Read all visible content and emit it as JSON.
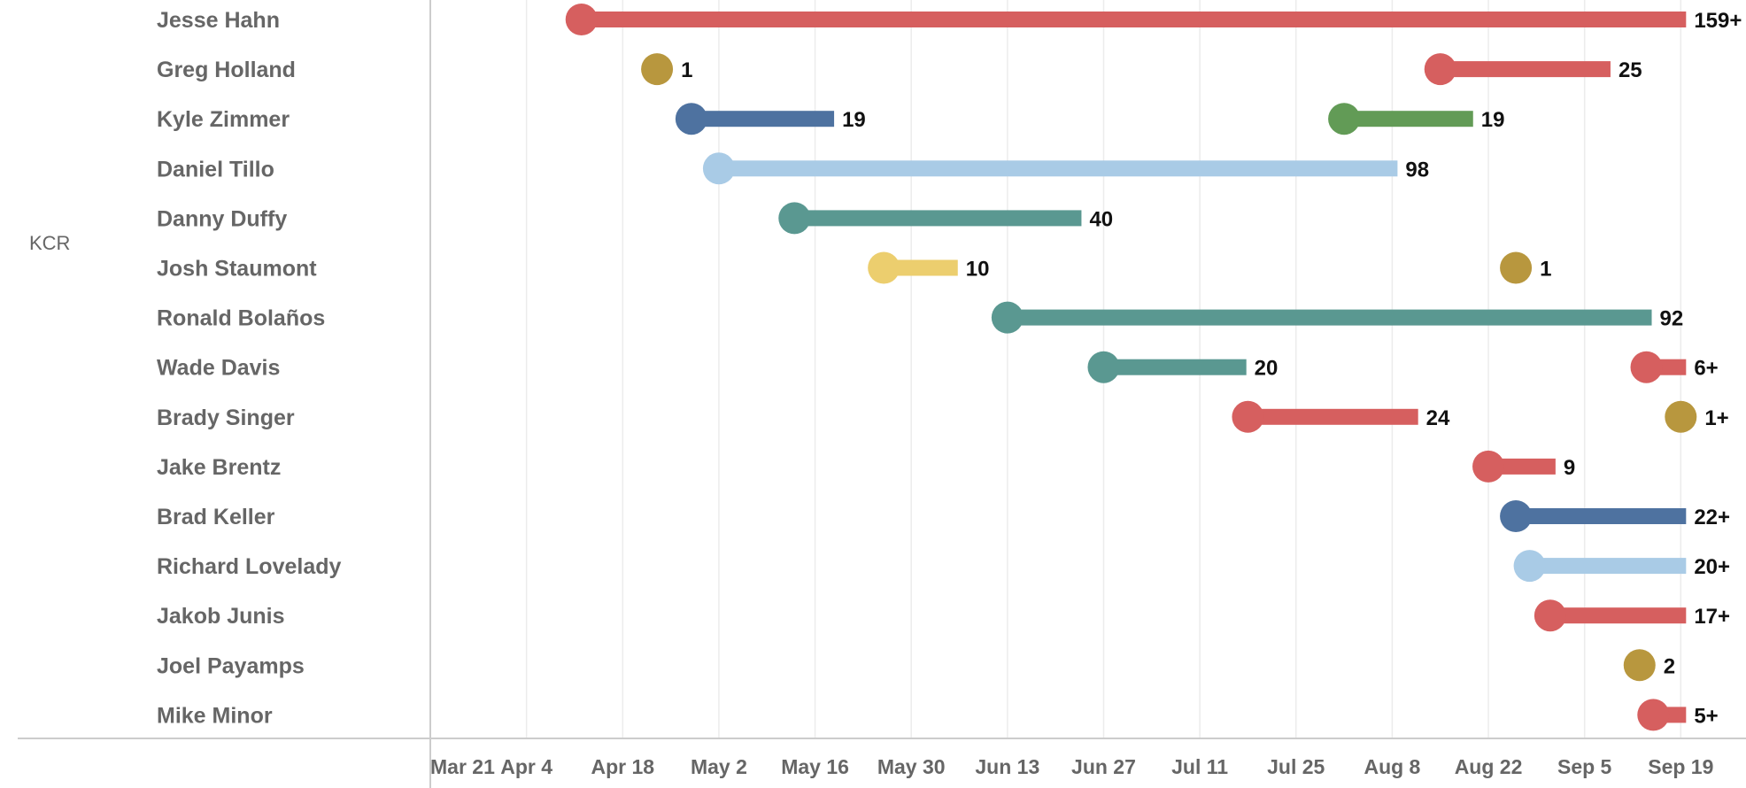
{
  "chart_data": {
    "type": "bar",
    "team": "KCR",
    "x_axis": {
      "ticks": [
        "Mar 21",
        "Apr 4",
        "Apr 18",
        "May 2",
        "May 16",
        "May 30",
        "Jun 13",
        "Jun 27",
        "Jul 11",
        "Jul 25",
        "Aug 8",
        "Aug 22",
        "Sep 5",
        "Sep 19"
      ],
      "range_days_from_mar21": [
        0,
        189
      ]
    },
    "rows": [
      {
        "player": "Jesse Hahn",
        "stints": [
          {
            "start": "Apr 12",
            "end": "Sep 19",
            "label": "159+",
            "color": "#d65f5f"
          }
        ]
      },
      {
        "player": "Greg Holland",
        "stints": [
          {
            "start": "Apr 23",
            "end": "Apr 23",
            "label": "1",
            "color": "#b8973e"
          },
          {
            "start": "Aug 15",
            "end": "Sep 8",
            "label": "25",
            "color": "#d65f5f"
          }
        ]
      },
      {
        "player": "Kyle Zimmer",
        "stints": [
          {
            "start": "Apr 28",
            "end": "May 18",
            "label": "19",
            "color": "#4e72a0"
          },
          {
            "start": "Aug 1",
            "end": "Aug 19",
            "label": "19",
            "color": "#629b56"
          }
        ]
      },
      {
        "player": "Daniel Tillo",
        "stints": [
          {
            "start": "May 2",
            "end": "Aug 8",
            "label": "98",
            "color": "#a9cbe6"
          }
        ]
      },
      {
        "player": "Danny Duffy",
        "stints": [
          {
            "start": "May 13",
            "end": "Jun 23",
            "label": "40",
            "color": "#5a9891"
          }
        ]
      },
      {
        "player": "Josh Staumont",
        "stints": [
          {
            "start": "May 26",
            "end": "Jun 5",
            "label": "10",
            "color": "#ecce6e"
          },
          {
            "start": "Aug 26",
            "end": "Aug 26",
            "label": "1",
            "color": "#b8973e"
          }
        ]
      },
      {
        "player": "Ronald Bolaños",
        "stints": [
          {
            "start": "Jun 13",
            "end": "Sep 14",
            "label": "92",
            "color": "#5a9891"
          }
        ]
      },
      {
        "player": "Wade Davis",
        "stints": [
          {
            "start": "Jun 27",
            "end": "Jul 17",
            "label": "20",
            "color": "#5a9891"
          },
          {
            "start": "Sep 14",
            "end": "Sep 19",
            "label": "6+",
            "color": "#d65f5f"
          }
        ]
      },
      {
        "player": "Brady Singer",
        "stints": [
          {
            "start": "Jul 18",
            "end": "Aug 11",
            "label": "24",
            "color": "#d65f5f"
          },
          {
            "start": "Sep 19",
            "end": "Sep 19",
            "label": "1+",
            "color": "#b8973e"
          }
        ]
      },
      {
        "player": "Jake Brentz",
        "stints": [
          {
            "start": "Aug 22",
            "end": "Aug 31",
            "label": "9",
            "color": "#d65f5f"
          }
        ]
      },
      {
        "player": "Brad Keller",
        "stints": [
          {
            "start": "Aug 26",
            "end": "Sep 19",
            "label": "22+",
            "color": "#4e72a0"
          }
        ]
      },
      {
        "player": "Richard Lovelady",
        "stints": [
          {
            "start": "Aug 28",
            "end": "Sep 19",
            "label": "20+",
            "color": "#a9cbe6"
          }
        ]
      },
      {
        "player": "Jakob Junis",
        "stints": [
          {
            "start": "Aug 31",
            "end": "Sep 19",
            "label": "17+",
            "color": "#d65f5f"
          }
        ]
      },
      {
        "player": "Joel Payamps",
        "stints": [
          {
            "start": "Sep 13",
            "end": "Sep 13",
            "label": "2",
            "color": "#b8973e"
          }
        ]
      },
      {
        "player": "Mike Minor",
        "stints": [
          {
            "start": "Sep 15",
            "end": "Sep 19",
            "label": "5+",
            "color": "#d65f5f"
          }
        ]
      }
    ],
    "grid": true,
    "title": "",
    "xlabel": "",
    "ylabel": ""
  }
}
